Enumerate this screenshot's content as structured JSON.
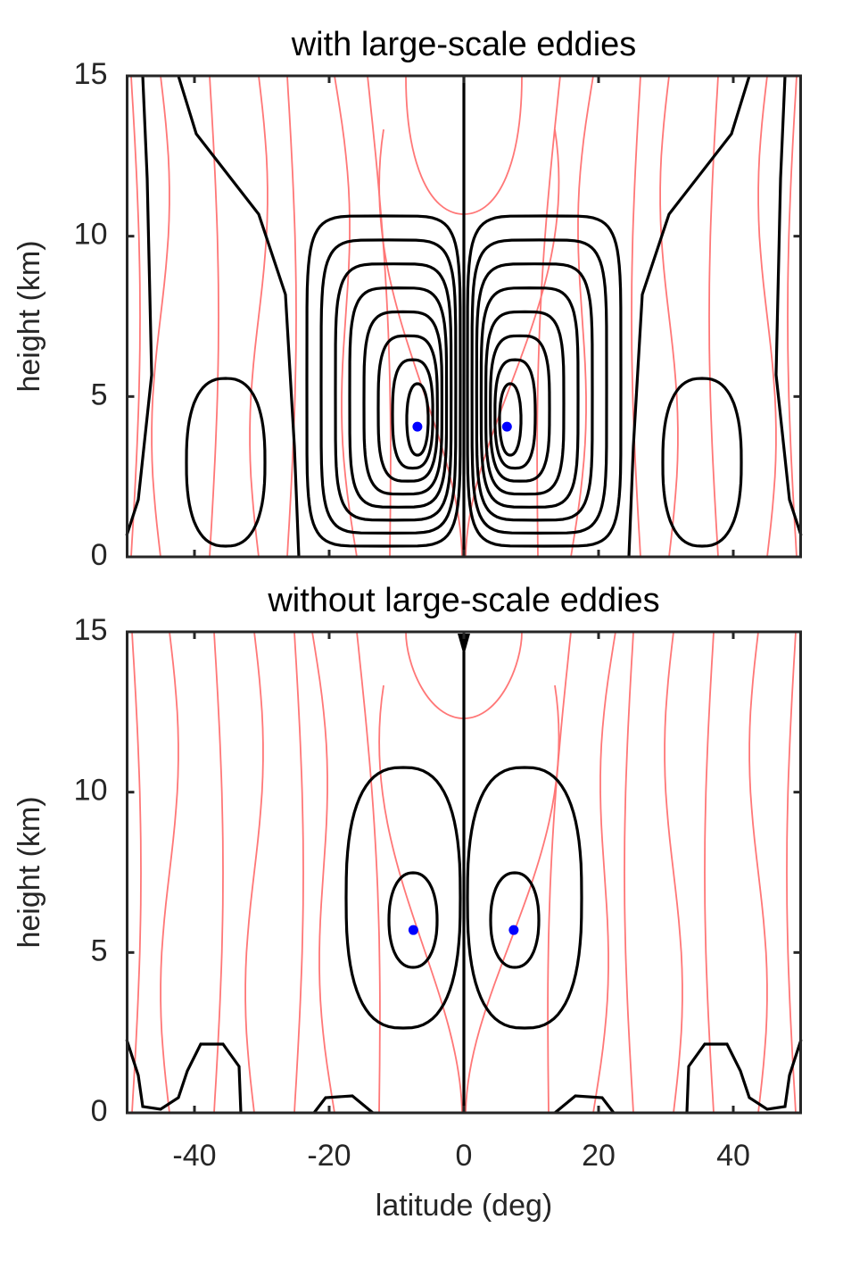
{
  "chart_data": [
    {
      "type": "scatter",
      "title": "with large-scale eddies",
      "ylabel": "height (km)",
      "x": [
        -6.9,
        6.4
      ],
      "series": [
        {
          "color": "#0000ff",
          "values": [
            4.06,
            4.06
          ]
        }
      ],
      "xlim": [
        -50,
        50
      ],
      "ylim": [
        0,
        15
      ],
      "xticks": [
        -40,
        -20,
        0,
        20,
        40
      ],
      "yticks": [
        0,
        5,
        10,
        15
      ],
      "xtick_labels": false
    },
    {
      "type": "scatter",
      "title": "without large-scale eddies",
      "xlabel": "latitude (deg)",
      "ylabel": "height (km)",
      "x": [
        -7.5,
        7.4
      ],
      "series": [
        {
          "color": "#0000ff",
          "values": [
            5.7,
            5.7
          ]
        }
      ],
      "xlim": [
        -50,
        50
      ],
      "ylim": [
        0,
        15
      ],
      "xticks": [
        -40,
        -20,
        0,
        20,
        40
      ],
      "yticks": [
        0,
        5,
        10,
        15
      ],
      "xtick_labels": true
    }
  ]
}
